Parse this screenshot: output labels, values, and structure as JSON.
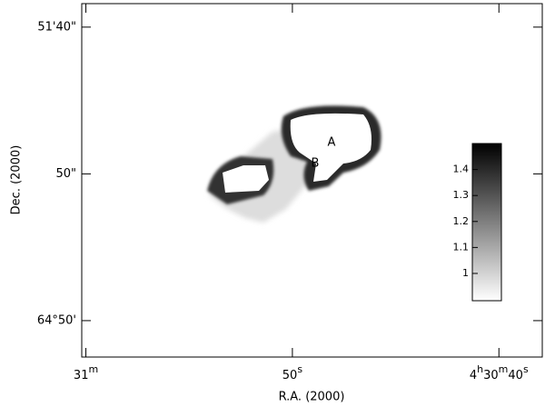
{
  "chart_data": {
    "type": "image",
    "xlabel": "R.A. (2000)",
    "ylabel": "Dec. (2000)",
    "xlim": [
      60.2,
      37.9
    ],
    "xticks": [
      {
        "value": 60,
        "label": "31m"
      },
      {
        "value": 50,
        "label": "50s"
      },
      {
        "value": 40,
        "label": "4h30m40s"
      }
    ],
    "ylim": [
      -12.4,
      108
    ],
    "yticks": [
      {
        "value": 100,
        "label": "51'40\""
      },
      {
        "value": 50,
        "label": "50\""
      },
      {
        "value": 0,
        "label": "64°50'"
      }
    ],
    "annotations": [
      "A",
      "B"
    ],
    "colorbar": {
      "lim": [
        0.895,
        1.5
      ],
      "ticks": [
        1,
        1.1,
        1.2,
        1.3,
        1.4
      ]
    }
  }
}
